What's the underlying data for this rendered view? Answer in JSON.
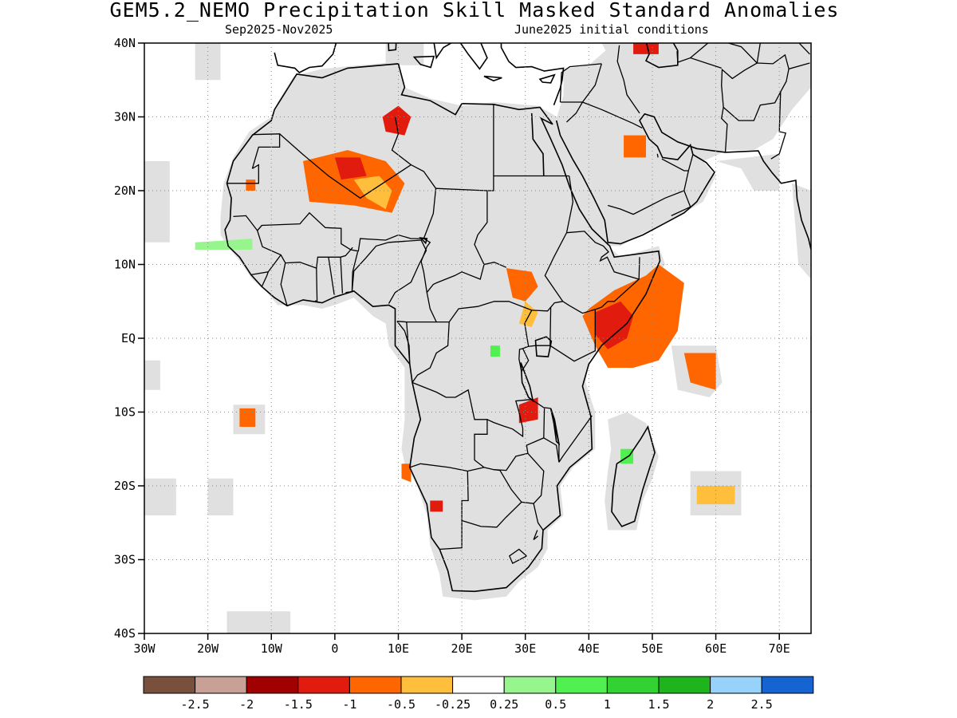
{
  "title": "GEM5.2_NEMO Precipitation Skill Masked Standard Anomalies",
  "subtitle_left": "Sep2025-Nov2025",
  "subtitle_right": "June2025 initial conditions",
  "map": {
    "lon_range": [
      -30,
      75
    ],
    "lat_range": [
      -40,
      40
    ],
    "lat_labels": [
      {
        "lat": 40,
        "text": "40N"
      },
      {
        "lat": 30,
        "text": "30N"
      },
      {
        "lat": 20,
        "text": "20N"
      },
      {
        "lat": 10,
        "text": "10N"
      },
      {
        "lat": 0,
        "text": "EQ"
      },
      {
        "lat": -10,
        "text": "10S"
      },
      {
        "lat": -20,
        "text": "20S"
      },
      {
        "lat": -30,
        "text": "30S"
      },
      {
        "lat": -40,
        "text": "40S"
      }
    ],
    "lon_labels": [
      {
        "lon": -30,
        "text": "30W"
      },
      {
        "lon": -20,
        "text": "20W"
      },
      {
        "lon": -10,
        "text": "10W"
      },
      {
        "lon": 0,
        "text": "0"
      },
      {
        "lon": 10,
        "text": "10E"
      },
      {
        "lon": 20,
        "text": "20E"
      },
      {
        "lon": 30,
        "text": "30E"
      },
      {
        "lon": 40,
        "text": "40E"
      },
      {
        "lon": 50,
        "text": "50E"
      },
      {
        "lon": 60,
        "text": "60E"
      },
      {
        "lon": 70,
        "text": "70E"
      }
    ],
    "gridlines": "dotted",
    "land_color": "#000000",
    "mask_color": "#e0e0e0",
    "anomaly_regions": [
      {
        "name": "sahara-central",
        "color": "#ff6600",
        "poly": [
          [
            -5,
            24
          ],
          [
            2,
            25.5
          ],
          [
            8,
            24
          ],
          [
            11,
            21
          ],
          [
            9,
            17
          ],
          [
            3,
            18
          ],
          [
            -4,
            18.5
          ]
        ]
      },
      {
        "name": "sahara-core-red",
        "color": "#e11b0e",
        "poly": [
          [
            0,
            24.5
          ],
          [
            4,
            24.5
          ],
          [
            5,
            22
          ],
          [
            1,
            21.5
          ]
        ]
      },
      {
        "name": "sahara-east-yellow",
        "color": "#ffbe3c",
        "poly": [
          [
            3,
            21.5
          ],
          [
            7,
            22
          ],
          [
            9,
            20
          ],
          [
            8,
            17.5
          ],
          [
            5,
            19
          ]
        ]
      },
      {
        "name": "libya-red",
        "color": "#e11b0e",
        "poly": [
          [
            7.5,
            30
          ],
          [
            10,
            31.5
          ],
          [
            12,
            30
          ],
          [
            11,
            27.5
          ],
          [
            8,
            28
          ]
        ]
      },
      {
        "name": "mauritania-small",
        "color": "#ff6600",
        "poly": [
          [
            -14,
            21.5
          ],
          [
            -12.5,
            21.5
          ],
          [
            -12.5,
            20
          ],
          [
            -14,
            20
          ]
        ]
      },
      {
        "name": "sudan-ss",
        "color": "#ff6600",
        "poly": [
          [
            27,
            9.5
          ],
          [
            31,
            9
          ],
          [
            32,
            7
          ],
          [
            30,
            5
          ],
          [
            28,
            5.5
          ]
        ]
      },
      {
        "name": "sudan-ss-yellow",
        "color": "#ffbe3c",
        "poly": [
          [
            30,
            5
          ],
          [
            32,
            3.5
          ],
          [
            31,
            1.5
          ],
          [
            29,
            2
          ]
        ]
      },
      {
        "name": "horn-africa",
        "color": "#ff6600",
        "poly": [
          [
            40,
            4
          ],
          [
            44,
            6.5
          ],
          [
            49,
            8.5
          ],
          [
            51,
            10
          ],
          [
            55,
            7.5
          ],
          [
            54,
            1
          ],
          [
            51,
            -3
          ],
          [
            47,
            -4
          ],
          [
            43,
            -4
          ],
          [
            41,
            -1
          ],
          [
            39,
            3
          ]
        ]
      },
      {
        "name": "horn-red",
        "color": "#e11b0e",
        "poly": [
          [
            41,
            3.5
          ],
          [
            45,
            5
          ],
          [
            47,
            3
          ],
          [
            46,
            0
          ],
          [
            43,
            -1.5
          ],
          [
            41,
            0.5
          ]
        ]
      },
      {
        "name": "indian-ocean-east",
        "color": "#ff6600",
        "poly": [
          [
            55,
            -2
          ],
          [
            60,
            -2
          ],
          [
            60,
            -7
          ],
          [
            56,
            -6
          ]
        ]
      },
      {
        "name": "lake-malawi-red",
        "color": "#e11b0e",
        "poly": [
          [
            29,
            -9
          ],
          [
            32,
            -8
          ],
          [
            32,
            -11
          ],
          [
            29,
            -11.5
          ]
        ]
      },
      {
        "name": "namibia-coast",
        "color": "#ff6600",
        "poly": [
          [
            10.5,
            -17
          ],
          [
            12,
            -17
          ],
          [
            12,
            -19.5
          ],
          [
            10.5,
            -19
          ]
        ]
      },
      {
        "name": "south-atl-orange",
        "color": "#ff6600",
        "poly": [
          [
            -15,
            -9.5
          ],
          [
            -12.5,
            -9.5
          ],
          [
            -12.5,
            -12
          ],
          [
            -15,
            -12
          ]
        ]
      },
      {
        "name": "botswana-red",
        "color": "#e11b0e",
        "poly": [
          [
            15,
            -22
          ],
          [
            17,
            -22
          ],
          [
            17,
            -23.5
          ],
          [
            15,
            -23.5
          ]
        ]
      },
      {
        "name": "reunion-yellow",
        "color": "#ffbe3c",
        "poly": [
          [
            57,
            -20
          ],
          [
            63,
            -20
          ],
          [
            63,
            -22.5
          ],
          [
            57,
            -22.5
          ]
        ]
      },
      {
        "name": "iraq-iran-red",
        "color": "#ff6600",
        "poly": [
          [
            45.5,
            27.5
          ],
          [
            49,
            27.5
          ],
          [
            49,
            24.5
          ],
          [
            45.5,
            24.5
          ]
        ]
      },
      {
        "name": "turkey-red",
        "color": "#e11b0e",
        "poly": [
          [
            47,
            40
          ],
          [
            51,
            40
          ],
          [
            51,
            38.5
          ],
          [
            47,
            38.5
          ]
        ]
      },
      {
        "name": "madagascar-green",
        "color": "#50f050",
        "poly": [
          [
            45,
            -15
          ],
          [
            47,
            -15
          ],
          [
            47,
            -17
          ],
          [
            45,
            -17
          ]
        ]
      },
      {
        "name": "congo-green",
        "color": "#50f050",
        "poly": [
          [
            24.5,
            -1
          ],
          [
            26,
            -1
          ],
          [
            26,
            -2.5
          ],
          [
            24.5,
            -2.5
          ]
        ]
      },
      {
        "name": "atlantic-green",
        "color": "#96f58c",
        "poly": [
          [
            -22,
            13
          ],
          [
            -13,
            13.5
          ],
          [
            -13,
            12
          ],
          [
            -22,
            12
          ]
        ]
      }
    ]
  },
  "colorbar": {
    "colors": [
      "#78503c",
      "#c8a096",
      "#a00000",
      "#e11b0e",
      "#ff6600",
      "#ffbe3c",
      "#ffffff",
      "#96f58c",
      "#50f050",
      "#32d232",
      "#1eb41e",
      "#96d2fa",
      "#1464d2"
    ],
    "labels": [
      "-2.5",
      "-2",
      "-1.5",
      "-1",
      "-0.5",
      "-0.25",
      "0.25",
      "0.5",
      "1",
      "1.5",
      "2",
      "2.5"
    ]
  }
}
